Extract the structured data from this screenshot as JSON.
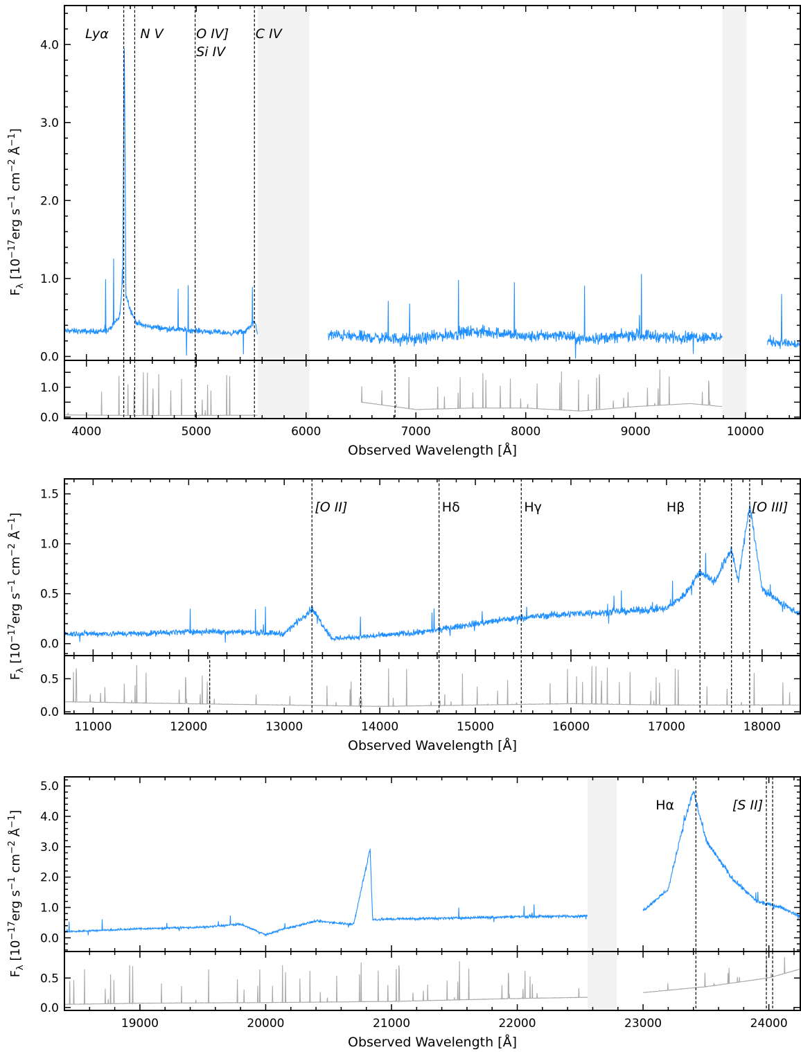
{
  "panels": [
    {
      "id": "optical",
      "ylabel": "F_λ [10^-17 erg s^-1 cm^-2 Å^-1]",
      "ylabel_parts": {
        "base": "F",
        "sub": "λ",
        "pre": " [10",
        "exp1": "−17",
        "mid1": "erg s",
        "exp2": "−1",
        "mid2": " cm",
        "exp3": "−2",
        "mid3": " Å",
        "exp4": "−1",
        "end": "]"
      },
      "xlabel": "Observed Wavelength [Å]",
      "xlim": [
        3800,
        10500
      ],
      "xticks": [
        4000,
        5000,
        6000,
        7000,
        8000,
        9000,
        10000
      ],
      "xtick_labels": [
        "4000",
        "5000",
        "6000",
        "7000",
        "8000",
        "9000",
        "10000"
      ],
      "main": {
        "ylim": [
          -0.05,
          4.5
        ],
        "yticks": [
          0.0,
          1.0,
          2.0,
          3.0,
          4.0
        ],
        "ytick_labels": [
          "0.0",
          "1.0",
          "2.0",
          "3.0",
          "4.0"
        ]
      },
      "error": {
        "ylim": [
          -0.05,
          1.9
        ],
        "yticks": [
          0.0,
          0.5,
          1.0,
          1.5
        ],
        "ytick_labels": [
          "0.0",
          "",
          "1.0",
          ""
        ]
      },
      "shaded": [
        [
          5560,
          6030
        ],
        [
          9790,
          10010
        ]
      ],
      "lines": [
        4340,
        4440,
        4990,
        5530
      ],
      "error_lines": [
        4340,
        4440,
        4990,
        5530,
        6810
      ],
      "labels": [
        {
          "text": "Lyα",
          "italic": true,
          "x": 3990,
          "row": 0
        },
        {
          "text": "N V",
          "italic": true,
          "x": 4490,
          "row": 0
        },
        {
          "text": "O IV]",
          "italic": true,
          "x": 5000,
          "row": 0
        },
        {
          "text": "Si IV",
          "italic": true,
          "x": 5000,
          "row": 1
        },
        {
          "text": "C IV",
          "italic": true,
          "x": 5540,
          "row": 0
        }
      ]
    },
    {
      "id": "j-band",
      "ylabel": "F_λ [10^-17 erg s^-1 cm^-2 Å^-1]",
      "ylabel_parts": {
        "base": "F",
        "sub": "λ",
        "pre": " [10",
        "exp1": "−17",
        "mid1": "erg s",
        "exp2": "−1",
        "mid2": " cm",
        "exp3": "−2",
        "mid3": " Å",
        "exp4": "−1",
        "end": "]"
      },
      "xlabel": "Observed Wavelength [Å]",
      "xlim": [
        10700,
        18400
      ],
      "xticks": [
        11000,
        12000,
        13000,
        14000,
        15000,
        16000,
        17000,
        18000
      ],
      "xtick_labels": [
        "11000",
        "12000",
        "13000",
        "14000",
        "15000",
        "16000",
        "17000",
        "18000"
      ],
      "main": {
        "ylim": [
          -0.12,
          1.65
        ],
        "yticks": [
          0.0,
          0.5,
          1.0,
          1.5
        ],
        "ytick_labels": [
          "0.0",
          "0.5",
          "1.0",
          "1.5"
        ]
      },
      "error": {
        "ylim": [
          -0.03,
          0.85
        ],
        "yticks": [
          0.0,
          0.5
        ],
        "ytick_labels": [
          "0.0",
          "0.5"
        ]
      },
      "shaded": [],
      "lines": [
        13290,
        14620,
        15480,
        17350,
        17680,
        17870
      ],
      "error_lines": [
        12220,
        13290,
        13800,
        14620,
        15480,
        17350,
        17680,
        17870
      ],
      "labels": [
        {
          "text": "[O II]",
          "italic": true,
          "x": 13320,
          "row": 0
        },
        {
          "text": "Hδ",
          "italic": false,
          "x": 14650,
          "row": 0
        },
        {
          "text": "Hγ",
          "italic": false,
          "x": 15510,
          "row": 0
        },
        {
          "text": "Hβ",
          "italic": false,
          "x": 17000,
          "row": 0
        },
        {
          "text": "[O III]",
          "italic": true,
          "x": 17890,
          "row": 0
        }
      ]
    },
    {
      "id": "k-band",
      "ylabel": "F_λ [10^-17 erg s^-1 cm^-2 Å^-1]",
      "ylabel_parts": {
        "base": "F",
        "sub": "λ",
        "pre": " [10",
        "exp1": "−17",
        "mid1": "erg s",
        "exp2": "−1",
        "mid2": " cm",
        "exp3": "−2",
        "mid3": " Å",
        "exp4": "−1",
        "end": "]"
      },
      "xlabel": "Observed Wavelength [Å]",
      "xlim": [
        18400,
        24250
      ],
      "xticks": [
        19000,
        20000,
        21000,
        22000,
        23000,
        24000
      ],
      "xtick_labels": [
        "19000",
        "20000",
        "21000",
        "22000",
        "23000",
        "24000"
      ],
      "main": {
        "ylim": [
          -0.45,
          5.3
        ],
        "yticks": [
          0.0,
          1.0,
          2.0,
          3.0,
          4.0,
          5.0
        ],
        "ytick_labels": [
          "0.0",
          "1.0",
          "2.0",
          "3.0",
          "4.0",
          "5.0"
        ]
      },
      "error": {
        "ylim": [
          -0.05,
          0.95
        ],
        "yticks": [
          0.0,
          0.5
        ],
        "ytick_labels": [
          "0.0",
          "0.5"
        ]
      },
      "shaded": [
        [
          22560,
          22790
        ]
      ],
      "lines": [
        23420,
        23980,
        24030
      ],
      "error_lines": [
        23420,
        23980,
        24030
      ],
      "labels": [
        {
          "text": "Hα",
          "italic": false,
          "x": 23100,
          "row": 0
        },
        {
          "text": "[S II]",
          "italic": true,
          "x": 23710,
          "row": 0
        }
      ]
    }
  ],
  "colors": {
    "flux": "#1f8fff",
    "error": "#a9a9a9",
    "shade": "#f2f2f2"
  },
  "chart_data": [
    {
      "type": "line",
      "xlabel": "Observed Wavelength [Å]",
      "ylabel": "F_λ [10^-17 erg s^-1 cm^-2 Å^-1]",
      "xlim": [
        3800,
        10500
      ],
      "ylim": [
        -0.05,
        4.5
      ],
      "series": [
        {
          "x": [
            3800,
            4000,
            4200,
            4300,
            4330,
            4345,
            4360,
            4400,
            4450,
            4500,
            4700,
            5000,
            5300,
            5450,
            5530,
            5560,
            6030,
            6200,
            6500,
            7000,
            7500,
            7800,
            8000,
            8300,
            8500,
            8800,
            9000,
            9300,
            9500,
            9790,
            10010,
            10200,
            10500
          ],
          "y": [
            0.33,
            0.32,
            0.33,
            0.5,
            0.95,
            4.05,
            0.8,
            0.6,
            0.45,
            0.4,
            0.36,
            0.33,
            0.3,
            0.32,
            0.45,
            0.28,
            null,
            0.28,
            0.25,
            0.22,
            0.32,
            0.3,
            0.25,
            0.28,
            0.22,
            0.25,
            0.28,
            0.25,
            0.25,
            0.25,
            null,
            0.2,
            0.15
          ]
        }
      ],
      "error_series": {
        "x": [
          3800,
          4500,
          5560,
          6030,
          6500,
          7000,
          7500,
          8000,
          8500,
          9000,
          9500,
          9790,
          10010,
          10500
        ],
        "y": [
          0.07,
          0.05,
          0.06,
          null,
          0.5,
          0.25,
          0.3,
          0.3,
          0.2,
          0.35,
          0.45,
          0.35,
          null,
          0.25
        ]
      },
      "annotations": [
        "Lyα",
        "N V",
        "O IV]",
        "Si IV",
        "C IV"
      ]
    },
    {
      "type": "line",
      "xlabel": "Observed Wavelength [Å]",
      "ylabel": "F_λ [10^-17 erg s^-1 cm^-2 Å^-1]",
      "xlim": [
        10700,
        18400
      ],
      "ylim": [
        -0.12,
        1.65
      ],
      "series": [
        {
          "x": [
            10700,
            11000,
            11500,
            12000,
            12500,
            13000,
            13290,
            13500,
            14000,
            14500,
            15000,
            15480,
            16000,
            16500,
            17000,
            17200,
            17350,
            17500,
            17680,
            17750,
            17870,
            18000,
            18200,
            18400
          ],
          "y": [
            0.1,
            0.1,
            0.1,
            0.12,
            0.12,
            0.1,
            0.35,
            0.05,
            0.08,
            0.12,
            0.2,
            0.26,
            0.3,
            0.32,
            0.35,
            0.5,
            0.72,
            0.62,
            0.95,
            0.62,
            1.4,
            0.55,
            0.4,
            0.3
          ]
        }
      ],
      "error_series": {
        "x": [
          10700,
          12000,
          13000,
          14000,
          15000,
          16000,
          17000,
          18000,
          18400
        ],
        "y": [
          0.15,
          0.12,
          0.1,
          0.08,
          0.1,
          0.12,
          0.1,
          0.1,
          0.1
        ]
      },
      "annotations": [
        "[O II]",
        "Hδ",
        "Hγ",
        "Hβ",
        "[O III]"
      ]
    },
    {
      "type": "line",
      "xlabel": "Observed Wavelength [Å]",
      "ylabel": "F_λ [10^-17 erg s^-1 cm^-2 Å^-1]",
      "xlim": [
        18400,
        24250
      ],
      "ylim": [
        -0.45,
        5.3
      ],
      "series": [
        {
          "x": [
            18400,
            19000,
            19500,
            19800,
            20000,
            20150,
            20400,
            20700,
            20830,
            20850,
            21000,
            21500,
            22000,
            22560,
            22790,
            23000,
            23200,
            23300,
            23400,
            23500,
            23700,
            23900,
            24100,
            24250
          ],
          "y": [
            0.2,
            0.3,
            0.35,
            0.45,
            0.1,
            0.3,
            0.55,
            0.45,
            2.95,
            0.6,
            0.62,
            0.65,
            0.7,
            0.72,
            null,
            0.9,
            1.6,
            3.4,
            4.85,
            3.2,
            2.0,
            1.2,
            1.0,
            0.7
          ]
        }
      ],
      "error_series": {
        "x": [
          18400,
          19000,
          20000,
          21000,
          22000,
          22560,
          22790,
          23000,
          23500,
          24000,
          24250
        ],
        "y": [
          0.05,
          0.07,
          0.08,
          0.1,
          0.15,
          0.17,
          null,
          0.25,
          0.35,
          0.5,
          0.65
        ]
      },
      "annotations": [
        "Hα",
        "[S II]"
      ]
    }
  ]
}
